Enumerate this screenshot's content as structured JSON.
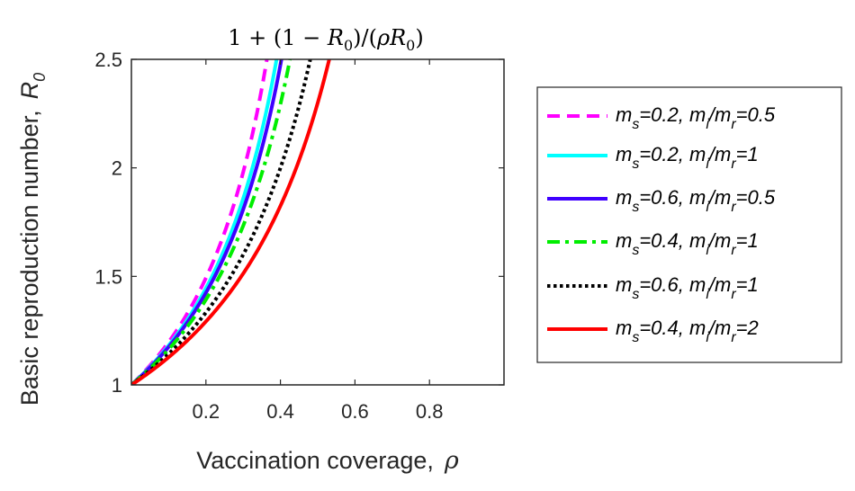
{
  "chart_data": {
    "type": "line",
    "title": "1 + (1 − R0)/(ρR0)",
    "title_parts": {
      "prefix": "1 + (1 − ",
      "R": "R",
      "sub": "0",
      "mid": ")/(",
      "rho": "ρ",
      "R2": "R",
      "sub2": "0",
      "suffix": ")"
    },
    "xlabel": "Vaccination coverage,  ρ",
    "xlabel_text": "Vaccination coverage,",
    "xlabel_symbol": "ρ",
    "ylabel_text": "Basic reproduction number,",
    "ylabel_symbol": "R",
    "ylabel_sub": "0",
    "xlim": [
      0,
      1
    ],
    "ylim": [
      1,
      2.5
    ],
    "xticks": [
      0.2,
      0.4,
      0.6,
      0.8
    ],
    "xtick_labels": [
      "0.2",
      "0.4",
      "0.6",
      "0.8"
    ],
    "yticks": [
      1,
      1.5,
      2,
      2.5
    ],
    "ytick_labels": [
      "1",
      "1.5",
      "2",
      "2.5"
    ],
    "grid": false,
    "legend_placement": "outside-right",
    "series": [
      {
        "ms": "0.2",
        "ratio": "0.5",
        "color": "#ff00ff",
        "dash": "dashed",
        "k": 1.65
      },
      {
        "ms": "0.2",
        "ratio": "1",
        "color": "#00ffff",
        "dash": "solid",
        "k": 1.54
      },
      {
        "ms": "0.6",
        "ratio": "0.5",
        "color": "#3f00ff",
        "dash": "solid",
        "k": 1.49
      },
      {
        "ms": "0.4",
        "ratio": "1",
        "color": "#00ee00",
        "dash": "dashdot",
        "k": 1.41
      },
      {
        "ms": "0.6",
        "ratio": "1",
        "color": "#000000",
        "dash": "dotted",
        "k": 1.25
      },
      {
        "ms": "0.4",
        "ratio": "2",
        "color": "#ff0000",
        "dash": "solid",
        "k": 1.13
      }
    ]
  }
}
